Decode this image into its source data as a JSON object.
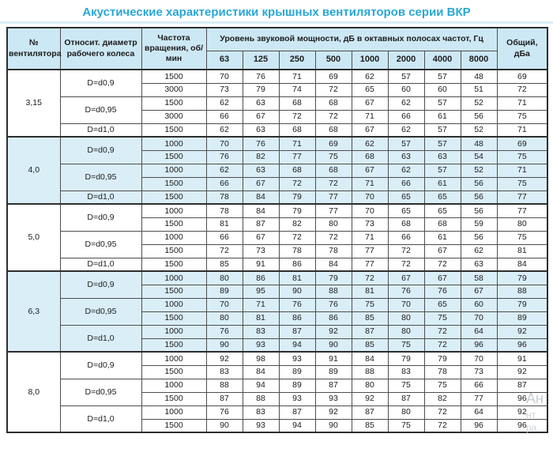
{
  "title": "Акустические характеристики крышных вентиляторов серии ВКР",
  "colors": {
    "title_accent": "#29a7d7",
    "header_bg": "#cde8f5",
    "shaded_row_bg": "#daeef8",
    "border": "#4e4e4e",
    "outer_border": "#2e2e2e"
  },
  "table": {
    "col_headers": {
      "fan_number": "№ вентилятора",
      "diameter": "Относит. диаметр рабочего колеса",
      "rpm": "Частота вращения, об/мин",
      "spl_group": "Уровень звуковой мощности, дБ в октавных полосах частот, Гц",
      "total": "Общий, дБа"
    },
    "freq_headers": [
      "63",
      "125",
      "250",
      "500",
      "1000",
      "2000",
      "4000",
      "8000"
    ],
    "sections": [
      {
        "fan": "3,15",
        "shaded": false,
        "groups": [
          {
            "diameter": "D=d0,9",
            "rows": [
              {
                "rpm": "1500",
                "values": [
                  70,
                  76,
                  71,
                  69,
                  62,
                  57,
                  57,
                  48,
                  69
                ]
              },
              {
                "rpm": "3000",
                "values": [
                  73,
                  79,
                  74,
                  72,
                  65,
                  60,
                  60,
                  51,
                  72
                ]
              }
            ]
          },
          {
            "diameter": "D=d0,95",
            "rows": [
              {
                "rpm": "1500",
                "values": [
                  62,
                  63,
                  68,
                  68,
                  67,
                  62,
                  57,
                  52,
                  71
                ]
              },
              {
                "rpm": "3000",
                "values": [
                  66,
                  67,
                  72,
                  72,
                  71,
                  66,
                  61,
                  56,
                  75
                ]
              }
            ]
          },
          {
            "diameter": "D=d1,0",
            "rows": [
              {
                "rpm": "1500",
                "values": [
                  62,
                  63,
                  68,
                  68,
                  67,
                  62,
                  57,
                  52,
                  71
                ]
              }
            ]
          }
        ]
      },
      {
        "fan": "4,0",
        "shaded": true,
        "groups": [
          {
            "diameter": "D=d0,9",
            "rows": [
              {
                "rpm": "1000",
                "values": [
                  70,
                  76,
                  71,
                  69,
                  62,
                  57,
                  57,
                  48,
                  69
                ]
              },
              {
                "rpm": "1500",
                "values": [
                  76,
                  82,
                  77,
                  75,
                  68,
                  63,
                  63,
                  54,
                  75
                ]
              }
            ]
          },
          {
            "diameter": "D=d0,95",
            "rows": [
              {
                "rpm": "1000",
                "values": [
                  62,
                  63,
                  68,
                  68,
                  67,
                  62,
                  57,
                  52,
                  71
                ]
              },
              {
                "rpm": "1500",
                "values": [
                  66,
                  67,
                  72,
                  72,
                  71,
                  66,
                  61,
                  56,
                  75
                ]
              }
            ]
          },
          {
            "diameter": "D=d1,0",
            "rows": [
              {
                "rpm": "1500",
                "values": [
                  78,
                  84,
                  79,
                  77,
                  70,
                  65,
                  65,
                  56,
                  77
                ]
              }
            ]
          }
        ]
      },
      {
        "fan": "5,0",
        "shaded": false,
        "groups": [
          {
            "diameter": "D=d0,9",
            "rows": [
              {
                "rpm": "1000",
                "values": [
                  78,
                  84,
                  79,
                  77,
                  70,
                  65,
                  65,
                  56,
                  77
                ]
              },
              {
                "rpm": "1500",
                "values": [
                  81,
                  87,
                  82,
                  80,
                  73,
                  68,
                  68,
                  59,
                  80
                ]
              }
            ]
          },
          {
            "diameter": "D=d0,95",
            "rows": [
              {
                "rpm": "1000",
                "values": [
                  66,
                  67,
                  72,
                  72,
                  71,
                  66,
                  61,
                  56,
                  75
                ]
              },
              {
                "rpm": "1500",
                "values": [
                  72,
                  73,
                  78,
                  78,
                  77,
                  72,
                  67,
                  62,
                  81
                ]
              }
            ]
          },
          {
            "diameter": "D=d1,0",
            "rows": [
              {
                "rpm": "1500",
                "values": [
                  85,
                  91,
                  86,
                  84,
                  77,
                  72,
                  72,
                  63,
                  84
                ]
              }
            ]
          }
        ]
      },
      {
        "fan": "6,3",
        "shaded": true,
        "groups": [
          {
            "diameter": "D=d0,9",
            "rows": [
              {
                "rpm": "1000",
                "values": [
                  80,
                  86,
                  81,
                  79,
                  72,
                  67,
                  67,
                  58,
                  79
                ]
              },
              {
                "rpm": "1500",
                "values": [
                  89,
                  95,
                  90,
                  88,
                  81,
                  76,
                  76,
                  67,
                  88
                ]
              }
            ]
          },
          {
            "diameter": "D=d0,95",
            "rows": [
              {
                "rpm": "1000",
                "values": [
                  70,
                  71,
                  76,
                  76,
                  75,
                  70,
                  65,
                  60,
                  79
                ]
              },
              {
                "rpm": "1500",
                "values": [
                  80,
                  81,
                  86,
                  86,
                  85,
                  80,
                  75,
                  70,
                  89
                ]
              }
            ]
          },
          {
            "diameter": "D=d1,0",
            "rows": [
              {
                "rpm": "1000",
                "values": [
                  76,
                  83,
                  87,
                  92,
                  87,
                  80,
                  72,
                  64,
                  92
                ]
              },
              {
                "rpm": "1500",
                "values": [
                  90,
                  93,
                  94,
                  90,
                  85,
                  75,
                  72,
                  96,
                  96
                ]
              }
            ]
          }
        ]
      },
      {
        "fan": "8,0",
        "shaded": false,
        "groups": [
          {
            "diameter": "D=d0,9",
            "rows": [
              {
                "rpm": "1000",
                "values": [
                  92,
                  98,
                  93,
                  91,
                  84,
                  79,
                  79,
                  70,
                  91
                ]
              },
              {
                "rpm": "1500",
                "values": [
                  83,
                  84,
                  89,
                  89,
                  88,
                  83,
                  78,
                  73,
                  92
                ]
              }
            ]
          },
          {
            "diameter": "D=d0,95",
            "rows": [
              {
                "rpm": "1000",
                "values": [
                  88,
                  94,
                  89,
                  87,
                  80,
                  75,
                  75,
                  66,
                  87
                ]
              },
              {
                "rpm": "1500",
                "values": [
                  87,
                  88,
                  93,
                  93,
                  92,
                  87,
                  82,
                  77,
                  96
                ]
              }
            ]
          },
          {
            "diameter": "D=d1,0",
            "rows": [
              {
                "rpm": "1000",
                "values": [
                  76,
                  83,
                  87,
                  92,
                  87,
                  80,
                  72,
                  64,
                  92
                ]
              },
              {
                "rpm": "1500",
                "values": [
                  90,
                  93,
                  94,
                  90,
                  85,
                  75,
                  72,
                  96,
                  96
                ]
              }
            ]
          }
        ]
      }
    ]
  },
  "watermark": {
    "line1": "Ан",
    "line2": "нт",
    "line3": "ра"
  }
}
